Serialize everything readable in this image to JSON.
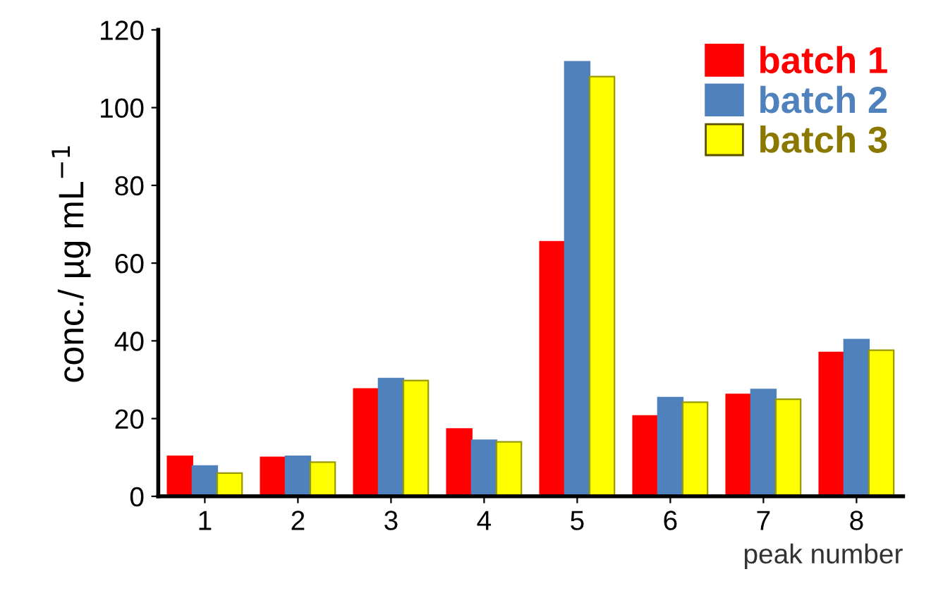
{
  "chart_data": {
    "type": "bar",
    "xlabel": "peak number",
    "ylabel": "conc./ µg mL$^{−1}$",
    "categories": [
      "1",
      "2",
      "3",
      "4",
      "5",
      "6",
      "7",
      "8"
    ],
    "series": [
      {
        "name": "batch 1",
        "color": "#ff0000",
        "values": [
          10.3,
          10,
          27.6,
          17.3,
          65.5,
          20.7,
          26.2,
          37
        ]
      },
      {
        "name": "batch 2",
        "color": "#4f81bd",
        "values": [
          7.8,
          10.3,
          30.3,
          14.4,
          111.8,
          25.4,
          27.5,
          40.3
        ]
      },
      {
        "name": "batch 3",
        "color": "#ffff00",
        "values": [
          6,
          8.8,
          29.8,
          14,
          108,
          24.2,
          25,
          37.6
        ]
      }
    ],
    "ylim": [
      0,
      120
    ],
    "yticks": [
      0,
      20,
      40,
      60,
      80,
      100,
      120
    ],
    "grid": false,
    "legend": "top right"
  }
}
